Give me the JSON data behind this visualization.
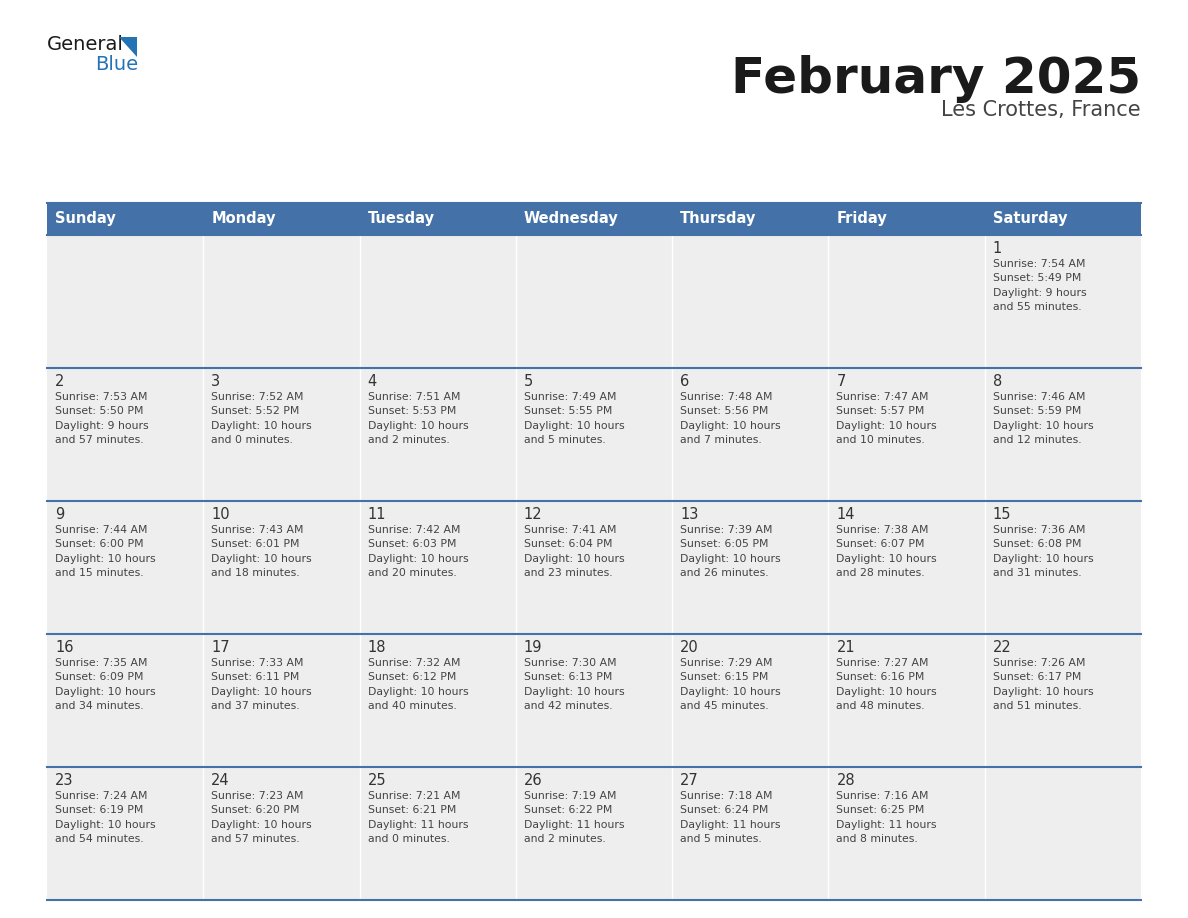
{
  "title": "February 2025",
  "subtitle": "Les Crottes, France",
  "header_color": "#4472a8",
  "header_text_color": "#ffffff",
  "cell_bg_color": "#eeeeee",
  "border_color": "#4472a8",
  "grid_line_color": "#ffffff",
  "day_headers": [
    "Sunday",
    "Monday",
    "Tuesday",
    "Wednesday",
    "Thursday",
    "Friday",
    "Saturday"
  ],
  "title_color": "#1a1a1a",
  "subtitle_color": "#444444",
  "day_num_color": "#333333",
  "cell_text_color": "#444444",
  "logo_general_color": "#1a1a1a",
  "logo_blue_color": "#2473b5",
  "logo_triangle_color": "#2473b5",
  "weeks": [
    [
      {
        "day": "",
        "info": ""
      },
      {
        "day": "",
        "info": ""
      },
      {
        "day": "",
        "info": ""
      },
      {
        "day": "",
        "info": ""
      },
      {
        "day": "",
        "info": ""
      },
      {
        "day": "",
        "info": ""
      },
      {
        "day": "1",
        "info": "Sunrise: 7:54 AM\nSunset: 5:49 PM\nDaylight: 9 hours\nand 55 minutes."
      }
    ],
    [
      {
        "day": "2",
        "info": "Sunrise: 7:53 AM\nSunset: 5:50 PM\nDaylight: 9 hours\nand 57 minutes."
      },
      {
        "day": "3",
        "info": "Sunrise: 7:52 AM\nSunset: 5:52 PM\nDaylight: 10 hours\nand 0 minutes."
      },
      {
        "day": "4",
        "info": "Sunrise: 7:51 AM\nSunset: 5:53 PM\nDaylight: 10 hours\nand 2 minutes."
      },
      {
        "day": "5",
        "info": "Sunrise: 7:49 AM\nSunset: 5:55 PM\nDaylight: 10 hours\nand 5 minutes."
      },
      {
        "day": "6",
        "info": "Sunrise: 7:48 AM\nSunset: 5:56 PM\nDaylight: 10 hours\nand 7 minutes."
      },
      {
        "day": "7",
        "info": "Sunrise: 7:47 AM\nSunset: 5:57 PM\nDaylight: 10 hours\nand 10 minutes."
      },
      {
        "day": "8",
        "info": "Sunrise: 7:46 AM\nSunset: 5:59 PM\nDaylight: 10 hours\nand 12 minutes."
      }
    ],
    [
      {
        "day": "9",
        "info": "Sunrise: 7:44 AM\nSunset: 6:00 PM\nDaylight: 10 hours\nand 15 minutes."
      },
      {
        "day": "10",
        "info": "Sunrise: 7:43 AM\nSunset: 6:01 PM\nDaylight: 10 hours\nand 18 minutes."
      },
      {
        "day": "11",
        "info": "Sunrise: 7:42 AM\nSunset: 6:03 PM\nDaylight: 10 hours\nand 20 minutes."
      },
      {
        "day": "12",
        "info": "Sunrise: 7:41 AM\nSunset: 6:04 PM\nDaylight: 10 hours\nand 23 minutes."
      },
      {
        "day": "13",
        "info": "Sunrise: 7:39 AM\nSunset: 6:05 PM\nDaylight: 10 hours\nand 26 minutes."
      },
      {
        "day": "14",
        "info": "Sunrise: 7:38 AM\nSunset: 6:07 PM\nDaylight: 10 hours\nand 28 minutes."
      },
      {
        "day": "15",
        "info": "Sunrise: 7:36 AM\nSunset: 6:08 PM\nDaylight: 10 hours\nand 31 minutes."
      }
    ],
    [
      {
        "day": "16",
        "info": "Sunrise: 7:35 AM\nSunset: 6:09 PM\nDaylight: 10 hours\nand 34 minutes."
      },
      {
        "day": "17",
        "info": "Sunrise: 7:33 AM\nSunset: 6:11 PM\nDaylight: 10 hours\nand 37 minutes."
      },
      {
        "day": "18",
        "info": "Sunrise: 7:32 AM\nSunset: 6:12 PM\nDaylight: 10 hours\nand 40 minutes."
      },
      {
        "day": "19",
        "info": "Sunrise: 7:30 AM\nSunset: 6:13 PM\nDaylight: 10 hours\nand 42 minutes."
      },
      {
        "day": "20",
        "info": "Sunrise: 7:29 AM\nSunset: 6:15 PM\nDaylight: 10 hours\nand 45 minutes."
      },
      {
        "day": "21",
        "info": "Sunrise: 7:27 AM\nSunset: 6:16 PM\nDaylight: 10 hours\nand 48 minutes."
      },
      {
        "day": "22",
        "info": "Sunrise: 7:26 AM\nSunset: 6:17 PM\nDaylight: 10 hours\nand 51 minutes."
      }
    ],
    [
      {
        "day": "23",
        "info": "Sunrise: 7:24 AM\nSunset: 6:19 PM\nDaylight: 10 hours\nand 54 minutes."
      },
      {
        "day": "24",
        "info": "Sunrise: 7:23 AM\nSunset: 6:20 PM\nDaylight: 10 hours\nand 57 minutes."
      },
      {
        "day": "25",
        "info": "Sunrise: 7:21 AM\nSunset: 6:21 PM\nDaylight: 11 hours\nand 0 minutes."
      },
      {
        "day": "26",
        "info": "Sunrise: 7:19 AM\nSunset: 6:22 PM\nDaylight: 11 hours\nand 2 minutes."
      },
      {
        "day": "27",
        "info": "Sunrise: 7:18 AM\nSunset: 6:24 PM\nDaylight: 11 hours\nand 5 minutes."
      },
      {
        "day": "28",
        "info": "Sunrise: 7:16 AM\nSunset: 6:25 PM\nDaylight: 11 hours\nand 8 minutes."
      },
      {
        "day": "",
        "info": ""
      }
    ]
  ]
}
